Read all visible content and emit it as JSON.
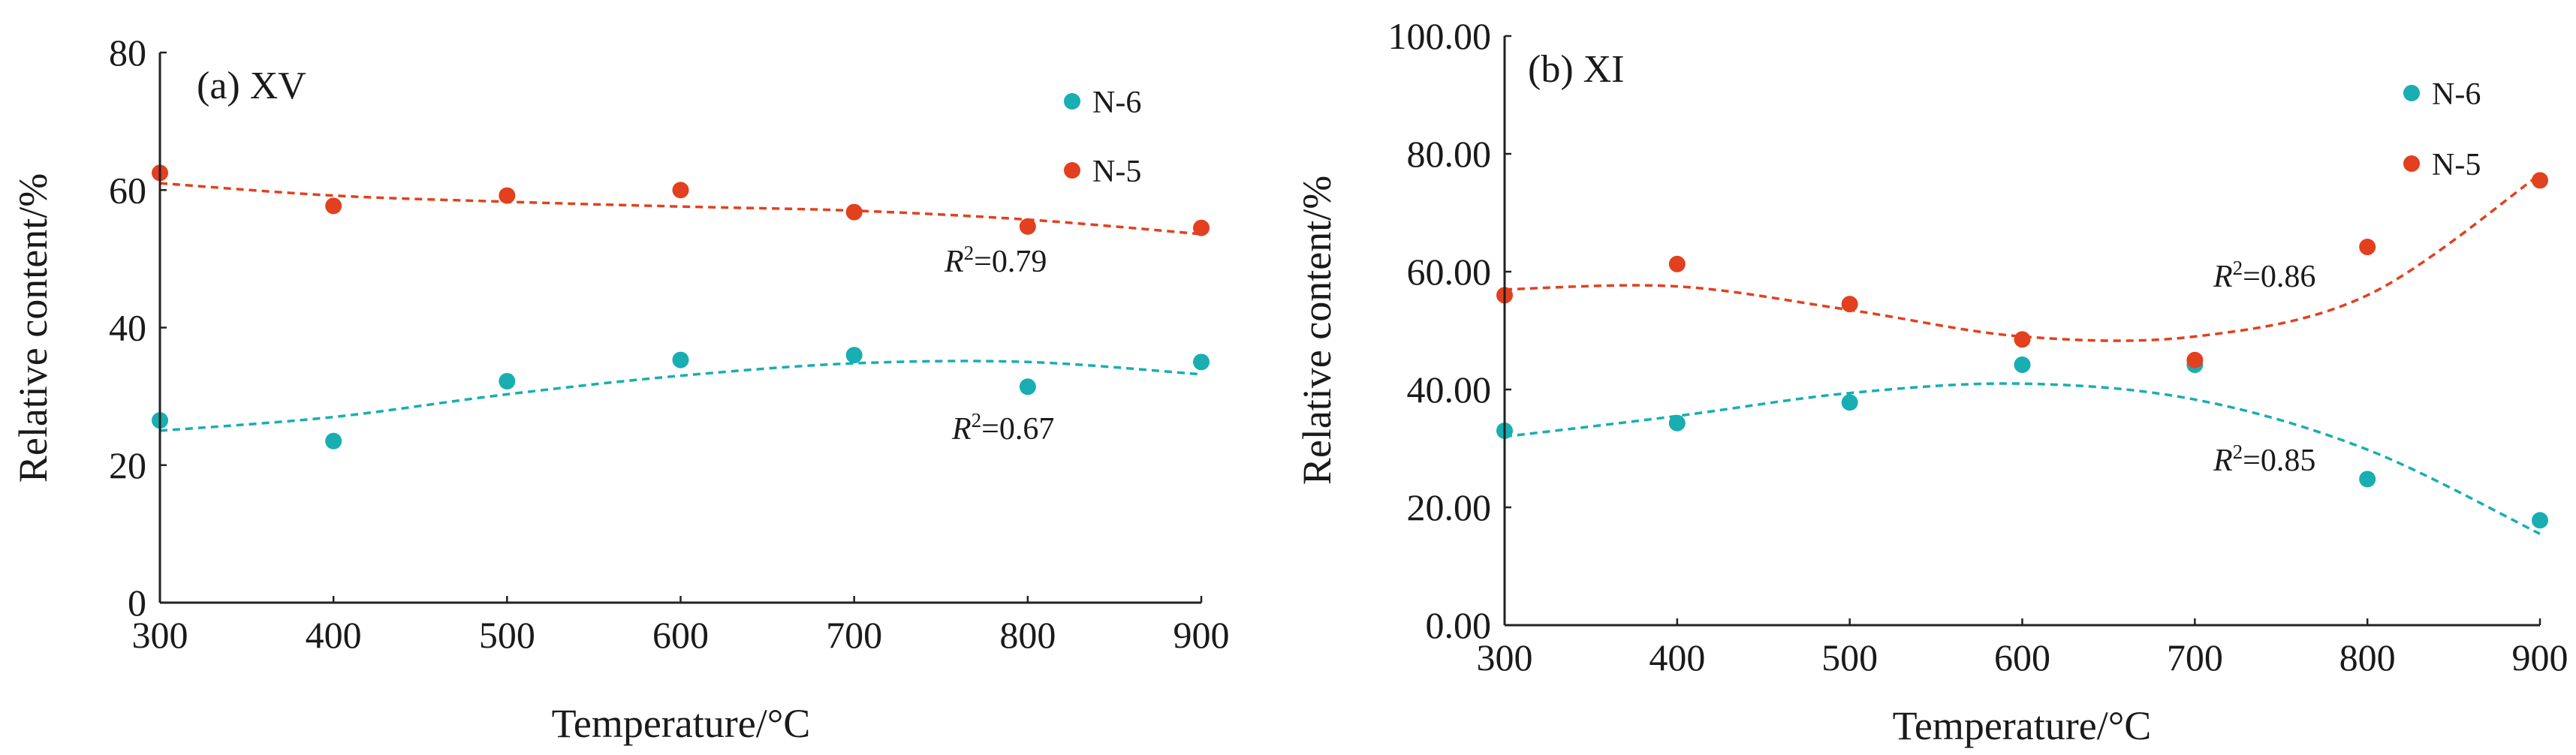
{
  "chart_data": [
    {
      "type": "scatter",
      "title": "(a) XV",
      "xlabel": "Temperature/°C",
      "ylabel": "Relative content/%",
      "xlim": [
        300,
        900
      ],
      "ylim": [
        0,
        80
      ],
      "xticks": [
        300,
        400,
        500,
        600,
        700,
        800,
        900
      ],
      "yticks": [
        0,
        20,
        40,
        60,
        80
      ],
      "ytick_labels": [
        "0",
        "20",
        "40",
        "60",
        "80"
      ],
      "grid": false,
      "legend_position": "top-right",
      "series": [
        {
          "name": "N-6",
          "color": "#18aeb2",
          "x": [
            300,
            400,
            500,
            600,
            700,
            800,
            900
          ],
          "values": [
            26.5,
            23.5,
            32.2,
            35.3,
            36.0,
            31.4,
            35.0
          ],
          "trend": {
            "r2_label": "R2=0.67",
            "r2_value": "0.67",
            "fit": [
              25.0,
              27.0,
              30.3,
              33.0,
              34.8,
              35.0,
              33.2
            ]
          }
        },
        {
          "name": "N-5",
          "color": "#e2401f",
          "x": [
            300,
            400,
            500,
            600,
            700,
            800,
            900
          ],
          "values": [
            62.5,
            57.7,
            59.2,
            60.0,
            56.8,
            54.7,
            54.5
          ],
          "trend": {
            "r2_label": "R2=0.79",
            "r2_value": "0.79",
            "fit": [
              61.0,
              59.2,
              58.3,
              57.6,
              57.0,
              55.7,
              53.6
            ]
          }
        }
      ]
    },
    {
      "type": "scatter",
      "title": "(b) XI",
      "xlabel": "Temperature/°C",
      "ylabel": "Relative content/%",
      "xlim": [
        300,
        900
      ],
      "ylim": [
        0,
        100
      ],
      "xticks": [
        300,
        400,
        500,
        600,
        700,
        800,
        900
      ],
      "yticks": [
        0,
        20,
        40,
        60,
        80,
        100
      ],
      "ytick_labels": [
        "0.00",
        "20.00",
        "40.00",
        "60.00",
        "80.00",
        "100.00"
      ],
      "grid": false,
      "legend_position": "top-right",
      "series": [
        {
          "name": "N-6",
          "color": "#18aeb2",
          "x": [
            300,
            400,
            500,
            600,
            700,
            800,
            900
          ],
          "values": [
            33.0,
            34.3,
            37.8,
            44.2,
            44.2,
            24.8,
            17.8
          ],
          "trend": {
            "r2_label": "R2=0.85",
            "r2_value": "0.85",
            "fit": [
              32.0,
              35.5,
              39.4,
              41.0,
              38.3,
              29.8,
              15.5
            ]
          }
        },
        {
          "name": "N-5",
          "color": "#e2401f",
          "x": [
            300,
            400,
            500,
            600,
            700,
            800,
            900
          ],
          "values": [
            56.0,
            61.3,
            54.5,
            48.5,
            45.0,
            64.2,
            75.5
          ],
          "trend": {
            "r2_label": "R2=0.86",
            "r2_value": "0.86",
            "fit": [
              57.0,
              57.5,
              53.5,
              49.0,
              49.0,
              56.0,
              76.5
            ]
          }
        }
      ]
    }
  ]
}
